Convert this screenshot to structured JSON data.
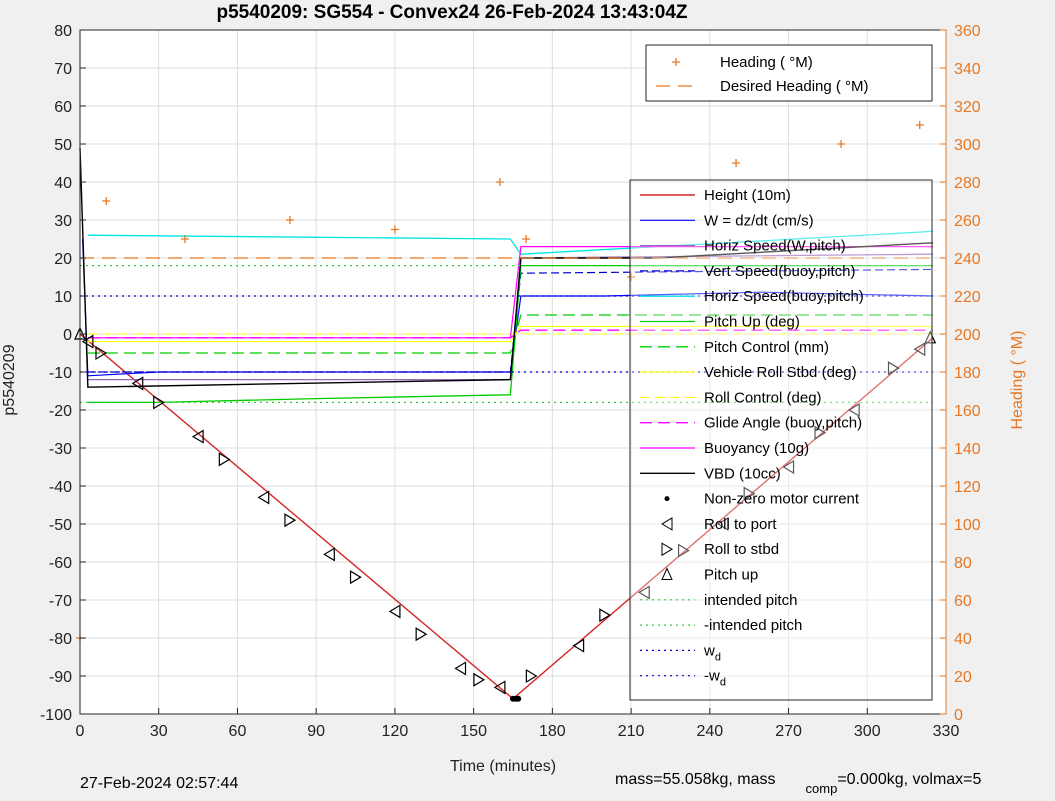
{
  "chart_data": {
    "type": "line",
    "title": "p5540209: SG554 - Convex24 26-Feb-2024 13:43:04Z",
    "xlabel": "Time (minutes)",
    "ylabel": "p5540209",
    "y2label": "Heading (  °M)",
    "xlim": [
      0,
      330
    ],
    "ylim": [
      -100,
      80
    ],
    "y2lim": [
      0,
      360
    ],
    "x_ticks": [
      0,
      30,
      60,
      90,
      120,
      150,
      180,
      210,
      240,
      270,
      300,
      330
    ],
    "y_ticks": [
      80,
      70,
      60,
      50,
      40,
      30,
      20,
      10,
      0,
      -10,
      -20,
      -30,
      -40,
      -50,
      -60,
      -70,
      -80,
      -90,
      -100
    ],
    "y2_ticks": [
      360,
      340,
      320,
      300,
      280,
      260,
      240,
      220,
      200,
      180,
      160,
      140,
      120,
      100,
      80,
      60,
      40,
      20,
      0
    ],
    "grid": true,
    "colors": {
      "height": "#d62728",
      "w": "#0000ff",
      "horiz_speed": "#9467bd",
      "vert_speed_buoy": "#0000cc",
      "pitch": "#00cc00",
      "pitch_control": "#00cc00",
      "roll": "#ffff00",
      "vbd": "#000000",
      "buoyancy": "#ff00ff",
      "glide": "#ff00ff",
      "heading": "#e87722",
      "speed_cyan": "#00e5e5"
    },
    "series": [
      {
        "name": "Height (10m)",
        "x": [
          0,
          165,
          325
        ],
        "values": [
          0,
          -96,
          -1
        ]
      },
      {
        "name": "W = dz/dt (cm/s)",
        "x": [
          1,
          3,
          30,
          90,
          164,
          168,
          200,
          260,
          325
        ],
        "values": [
          25,
          -11,
          -10,
          -10,
          -10,
          10,
          10,
          11,
          10
        ]
      },
      {
        "name": "Horiz Speed(W,pitch)",
        "x": [
          3,
          164,
          168,
          325
        ],
        "values": [
          -12,
          -12,
          20,
          21
        ]
      },
      {
        "name": "Vert Speed(buoy,pitch)",
        "x": [
          3,
          164,
          168,
          325
        ],
        "values": [
          -10,
          -10,
          16,
          17
        ]
      },
      {
        "name": "Horiz Speed(buoy,pitch)",
        "x": [
          3,
          164,
          168,
          325
        ],
        "values": [
          26,
          25,
          21,
          27
        ]
      },
      {
        "name": "Pitch Up (deg)",
        "x": [
          3,
          30,
          90,
          164,
          168,
          250,
          325
        ],
        "values": [
          -18,
          -18,
          -17,
          -16,
          18,
          18,
          18
        ]
      },
      {
        "name": "Pitch Control (mm)",
        "x": [
          3,
          164,
          168,
          325
        ],
        "values": [
          -5,
          -5,
          5,
          5
        ]
      },
      {
        "name": "Vehicle Roll Stbd (deg)",
        "x": [
          3,
          164,
          168,
          325
        ],
        "values": [
          -2,
          -2,
          2,
          2
        ]
      },
      {
        "name": "Roll Control (deg)",
        "x": [
          3,
          164,
          168,
          325
        ],
        "values": [
          0,
          0,
          0,
          0
        ]
      },
      {
        "name": "Glide Angle (buoy,pitch)",
        "x": [
          3,
          164,
          168,
          325
        ],
        "values": [
          -1,
          -1,
          1,
          1
        ]
      },
      {
        "name": "Buoyancy (10g)",
        "x": [
          3,
          164,
          168,
          325
        ],
        "values": [
          -1,
          -1,
          23,
          23
        ]
      },
      {
        "name": "VBD (10cc)",
        "x": [
          0,
          3,
          164,
          168,
          220,
          325
        ],
        "values": [
          49,
          -14,
          -12,
          20,
          20,
          24
        ]
      },
      {
        "name": "intended pitch",
        "x": [
          0,
          325
        ],
        "values": [
          18,
          18
        ]
      },
      {
        "name": "-intended pitch",
        "x": [
          0,
          325
        ],
        "values": [
          -18,
          -18
        ]
      },
      {
        "name": "w d",
        "x": [
          0,
          325
        ],
        "values": [
          10,
          10
        ]
      },
      {
        "name": "-w d",
        "x": [
          0,
          325
        ],
        "values": [
          -10,
          -10
        ]
      },
      {
        "name": "Heading (  °M)",
        "axis": "right",
        "x": [
          0,
          10,
          40,
          80,
          120,
          160,
          170,
          210,
          250,
          290,
          320
        ],
        "values": [
          40,
          270,
          250,
          260,
          255,
          280,
          250,
          230,
          290,
          300,
          310
        ]
      },
      {
        "name": "Desired Heading (    °M)",
        "axis": "right",
        "x": [
          0,
          325
        ],
        "values": [
          240,
          240
        ]
      }
    ],
    "markers": {
      "non_zero_motor_current": {
        "name": "Non-zero motor current",
        "x": [
          165,
          166,
          167
        ],
        "values": [
          -96,
          -96,
          -96
        ]
      },
      "roll_to_port": {
        "name": "Roll to port",
        "x": [
          3,
          22,
          45,
          70,
          95,
          120,
          145,
          160,
          190,
          215,
          245,
          270,
          295,
          320
        ],
        "values": [
          -2,
          -13,
          -27,
          -43,
          -58,
          -73,
          -88,
          -93,
          -82,
          -68,
          -50,
          -35,
          -20,
          -4
        ]
      },
      "roll_to_stbd": {
        "name": "Roll to stbd",
        "x": [
          8,
          30,
          55,
          80,
          105,
          130,
          152,
          172,
          200,
          230,
          255,
          282,
          310
        ],
        "values": [
          -5,
          -18,
          -33,
          -49,
          -64,
          -79,
          -91,
          -90,
          -74,
          -57,
          -42,
          -26,
          -9
        ]
      },
      "pitch_up": {
        "name": "Pitch up",
        "x": [
          0,
          324
        ],
        "values": [
          0,
          -1
        ]
      }
    },
    "legend": "top-right",
    "legend_heading": "top-right",
    "footer": {
      "date": "27-Feb-2024 02:57:44",
      "mass_text": "mass=55.058kg, mass",
      "comp_sub": "comp",
      "mass_rest": "=0.000kg, volmax=5"
    }
  }
}
